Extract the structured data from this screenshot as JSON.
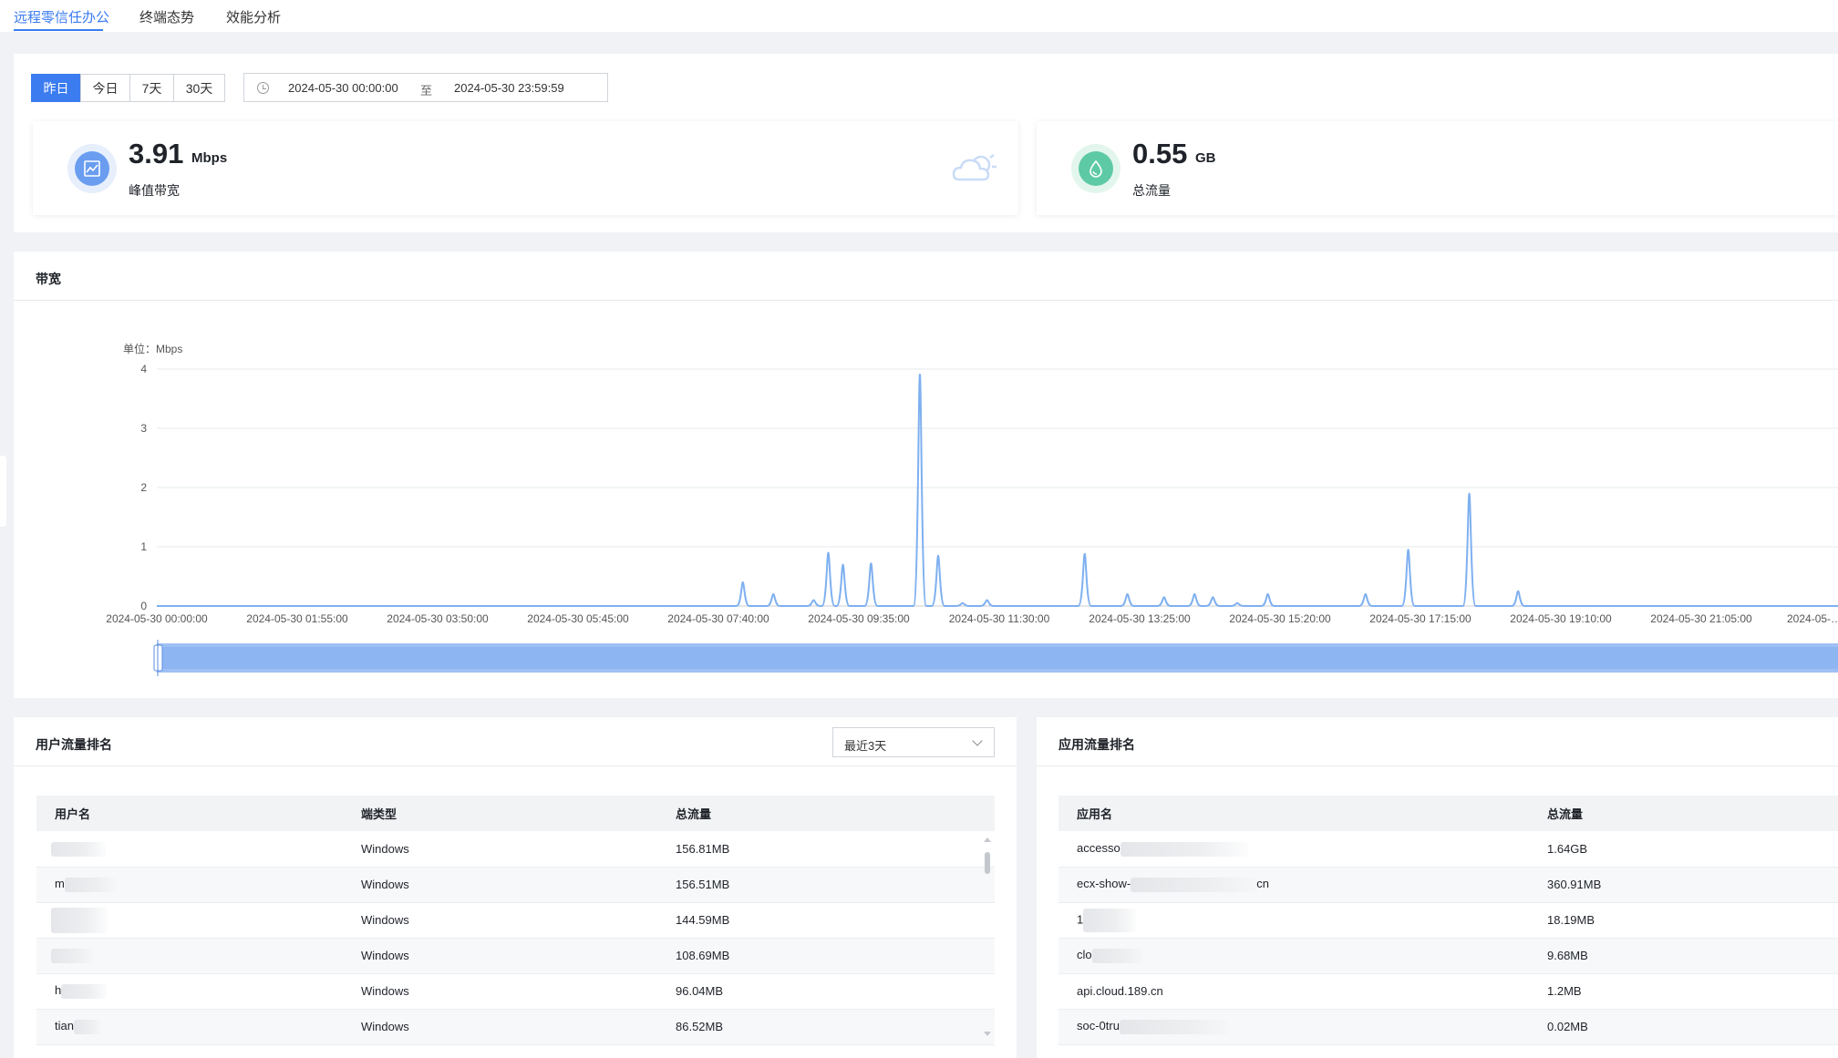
{
  "tabs": [
    {
      "label": "远程零信任办公",
      "active": true
    },
    {
      "label": "终端态势",
      "active": false
    },
    {
      "label": "效能分析",
      "active": false
    }
  ],
  "filters": {
    "ranges": [
      {
        "label": "昨日",
        "active": true
      },
      {
        "label": "今日",
        "active": false
      },
      {
        "label": "7天",
        "active": false
      },
      {
        "label": "30天",
        "active": false
      }
    ],
    "date_start": "2024-05-30 00:00:00",
    "date_sep": "至",
    "date_end": "2024-05-30 23:59:59"
  },
  "stats": {
    "peak": {
      "value": "3.91",
      "unit": "Mbps",
      "label": "峰值带宽",
      "icon": "line-chart-icon",
      "color": "#6a9df0"
    },
    "total": {
      "value": "0.55",
      "unit": "GB",
      "label": "总流量",
      "icon": "water-drop-icon",
      "color": "#5ecaa5"
    }
  },
  "bandwidth": {
    "title": "带宽",
    "unit_label": "单位：Mbps"
  },
  "chart_data": {
    "type": "line",
    "title": "带宽",
    "ylabel": "单位：Mbps",
    "ylim": [
      0,
      4
    ],
    "yticks": [
      "0",
      "1",
      "2",
      "3",
      "4"
    ],
    "xticks": [
      "2024-05-30 00:00:00",
      "2024-05-30 01:55:00",
      "2024-05-30 03:50:00",
      "2024-05-30 05:45:00",
      "2024-05-30 07:40:00",
      "2024-05-30 09:35:00",
      "2024-05-30 11:30:00",
      "2024-05-30 13:25:00",
      "2024-05-30 15:20:00",
      "2024-05-30 17:15:00",
      "2024-05-30 19:10:00",
      "2024-05-30 21:05:00",
      "2024-05-…"
    ],
    "color": "#7fb0f0",
    "series": [
      {
        "peaks": [
          {
            "time": "08:00",
            "value": 0.4
          },
          {
            "time": "08:25",
            "value": 0.2
          },
          {
            "time": "08:58",
            "value": 0.1
          },
          {
            "time": "09:10",
            "value": 0.9
          },
          {
            "time": "09:22",
            "value": 0.7
          },
          {
            "time": "09:45",
            "value": 0.72
          },
          {
            "time": "10:25",
            "value": 3.91
          },
          {
            "time": "10:40",
            "value": 0.85
          },
          {
            "time": "11:00",
            "value": 0.05
          },
          {
            "time": "11:20",
            "value": 0.1
          },
          {
            "time": "12:40",
            "value": 0.88
          },
          {
            "time": "13:15",
            "value": 0.2
          },
          {
            "time": "13:45",
            "value": 0.15
          },
          {
            "time": "14:10",
            "value": 0.2
          },
          {
            "time": "14:25",
            "value": 0.15
          },
          {
            "time": "14:45",
            "value": 0.05
          },
          {
            "time": "15:10",
            "value": 0.2
          },
          {
            "time": "16:30",
            "value": 0.2
          },
          {
            "time": "17:05",
            "value": 0.95
          },
          {
            "time": "17:55",
            "value": 1.9
          },
          {
            "time": "18:35",
            "value": 0.25
          }
        ]
      }
    ]
  },
  "user_rank": {
    "title": "用户流量排名",
    "select_value": "最近3天",
    "columns": [
      "用户名",
      "端类型",
      "总流量"
    ],
    "rows": [
      {
        "name": "",
        "type": "Windows",
        "total": "156.81MB"
      },
      {
        "name": "m",
        "type": "Windows",
        "total": "156.51MB"
      },
      {
        "name": "",
        "type": "Windows",
        "total": "144.59MB"
      },
      {
        "name": "",
        "type": "Windows",
        "total": "108.69MB"
      },
      {
        "name": "h",
        "type": "Windows",
        "total": "96.04MB"
      },
      {
        "name": "tian",
        "type": "Windows",
        "total": "86.52MB"
      }
    ]
  },
  "app_rank": {
    "title": "应用流量排名",
    "columns": [
      "应用名",
      "总流量"
    ],
    "rows": [
      {
        "name": "accesso",
        "suffix": "",
        "total": "1.64GB"
      },
      {
        "name": "ecx-show-",
        "suffix": "cn",
        "total": "360.91MB"
      },
      {
        "name": "1",
        "suffix": "",
        "total": "18.19MB"
      },
      {
        "name": "clo",
        "suffix": "",
        "total": "9.68MB"
      },
      {
        "name": "api.cloud.189.cn",
        "suffix": "",
        "total": "1.2MB"
      },
      {
        "name": "soc-0tru",
        "suffix": "",
        "total": "0.02MB"
      }
    ]
  }
}
